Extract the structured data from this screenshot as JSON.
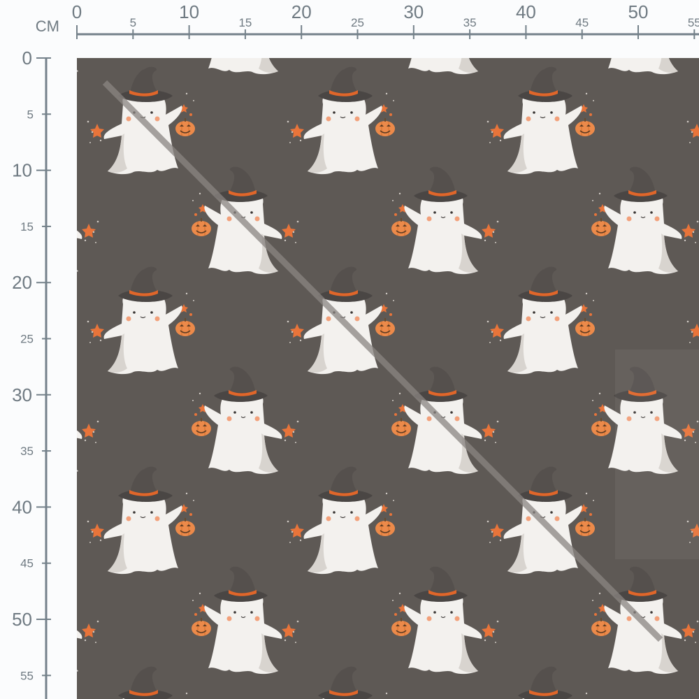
{
  "ruler": {
    "unit": "CM",
    "top_labels": [
      "0",
      "5",
      "10",
      "15",
      "20",
      "25",
      "30",
      "35",
      "40",
      "45",
      "50",
      "55"
    ],
    "left_labels": [
      "0",
      "5",
      "10",
      "15",
      "20",
      "25",
      "30",
      "35",
      "40",
      "45",
      "50",
      "55"
    ],
    "color": "#74818a"
  },
  "fabric": {
    "background": "#5e5955",
    "pattern": "witch-hat ghosts holding jack-o-lantern pumpkins with orange stars",
    "colors": {
      "ghost": "#f3f1ee",
      "hat": "#4a4644",
      "band": "#e0662a",
      "pumpkin": "#ec8a4a",
      "crease": "#8a8582"
    }
  }
}
